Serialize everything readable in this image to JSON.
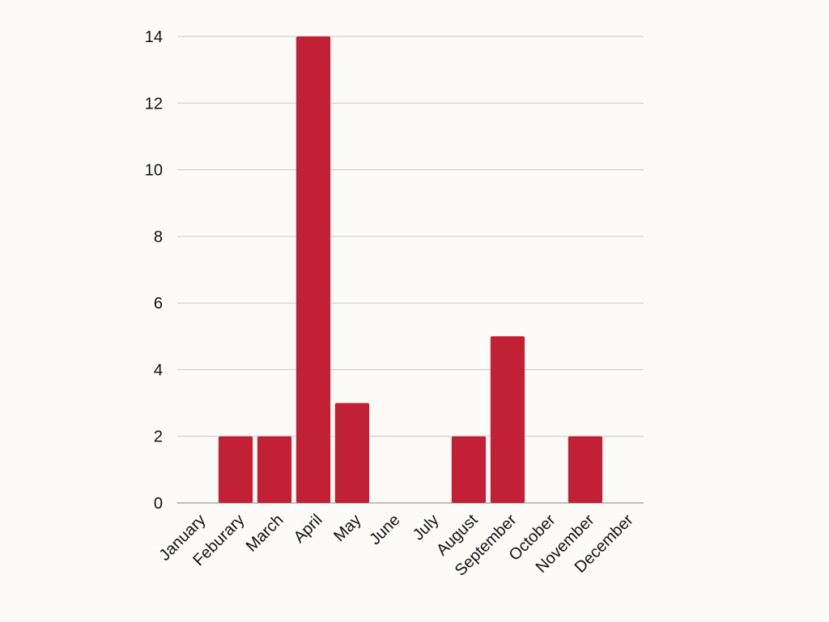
{
  "chart_data": {
    "type": "bar",
    "categories": [
      "January",
      "Feburary",
      "March",
      "April",
      "May",
      "June",
      "July",
      "August",
      "September",
      "October",
      "November",
      "December"
    ],
    "values": [
      0,
      2,
      2,
      14,
      3,
      0,
      0,
      2,
      5,
      0,
      2,
      0
    ],
    "yticks": [
      "0",
      "2",
      "4",
      "6",
      "8",
      "10",
      "12",
      "14"
    ],
    "ylim": [
      0,
      14
    ],
    "grid": true,
    "legend": "none",
    "title": "",
    "xlabel": "",
    "ylabel": "",
    "colors": {
      "bar": "#c22034",
      "grid": "#c8c8c8",
      "axis": "#999999",
      "background": "#fcfbf8"
    }
  }
}
